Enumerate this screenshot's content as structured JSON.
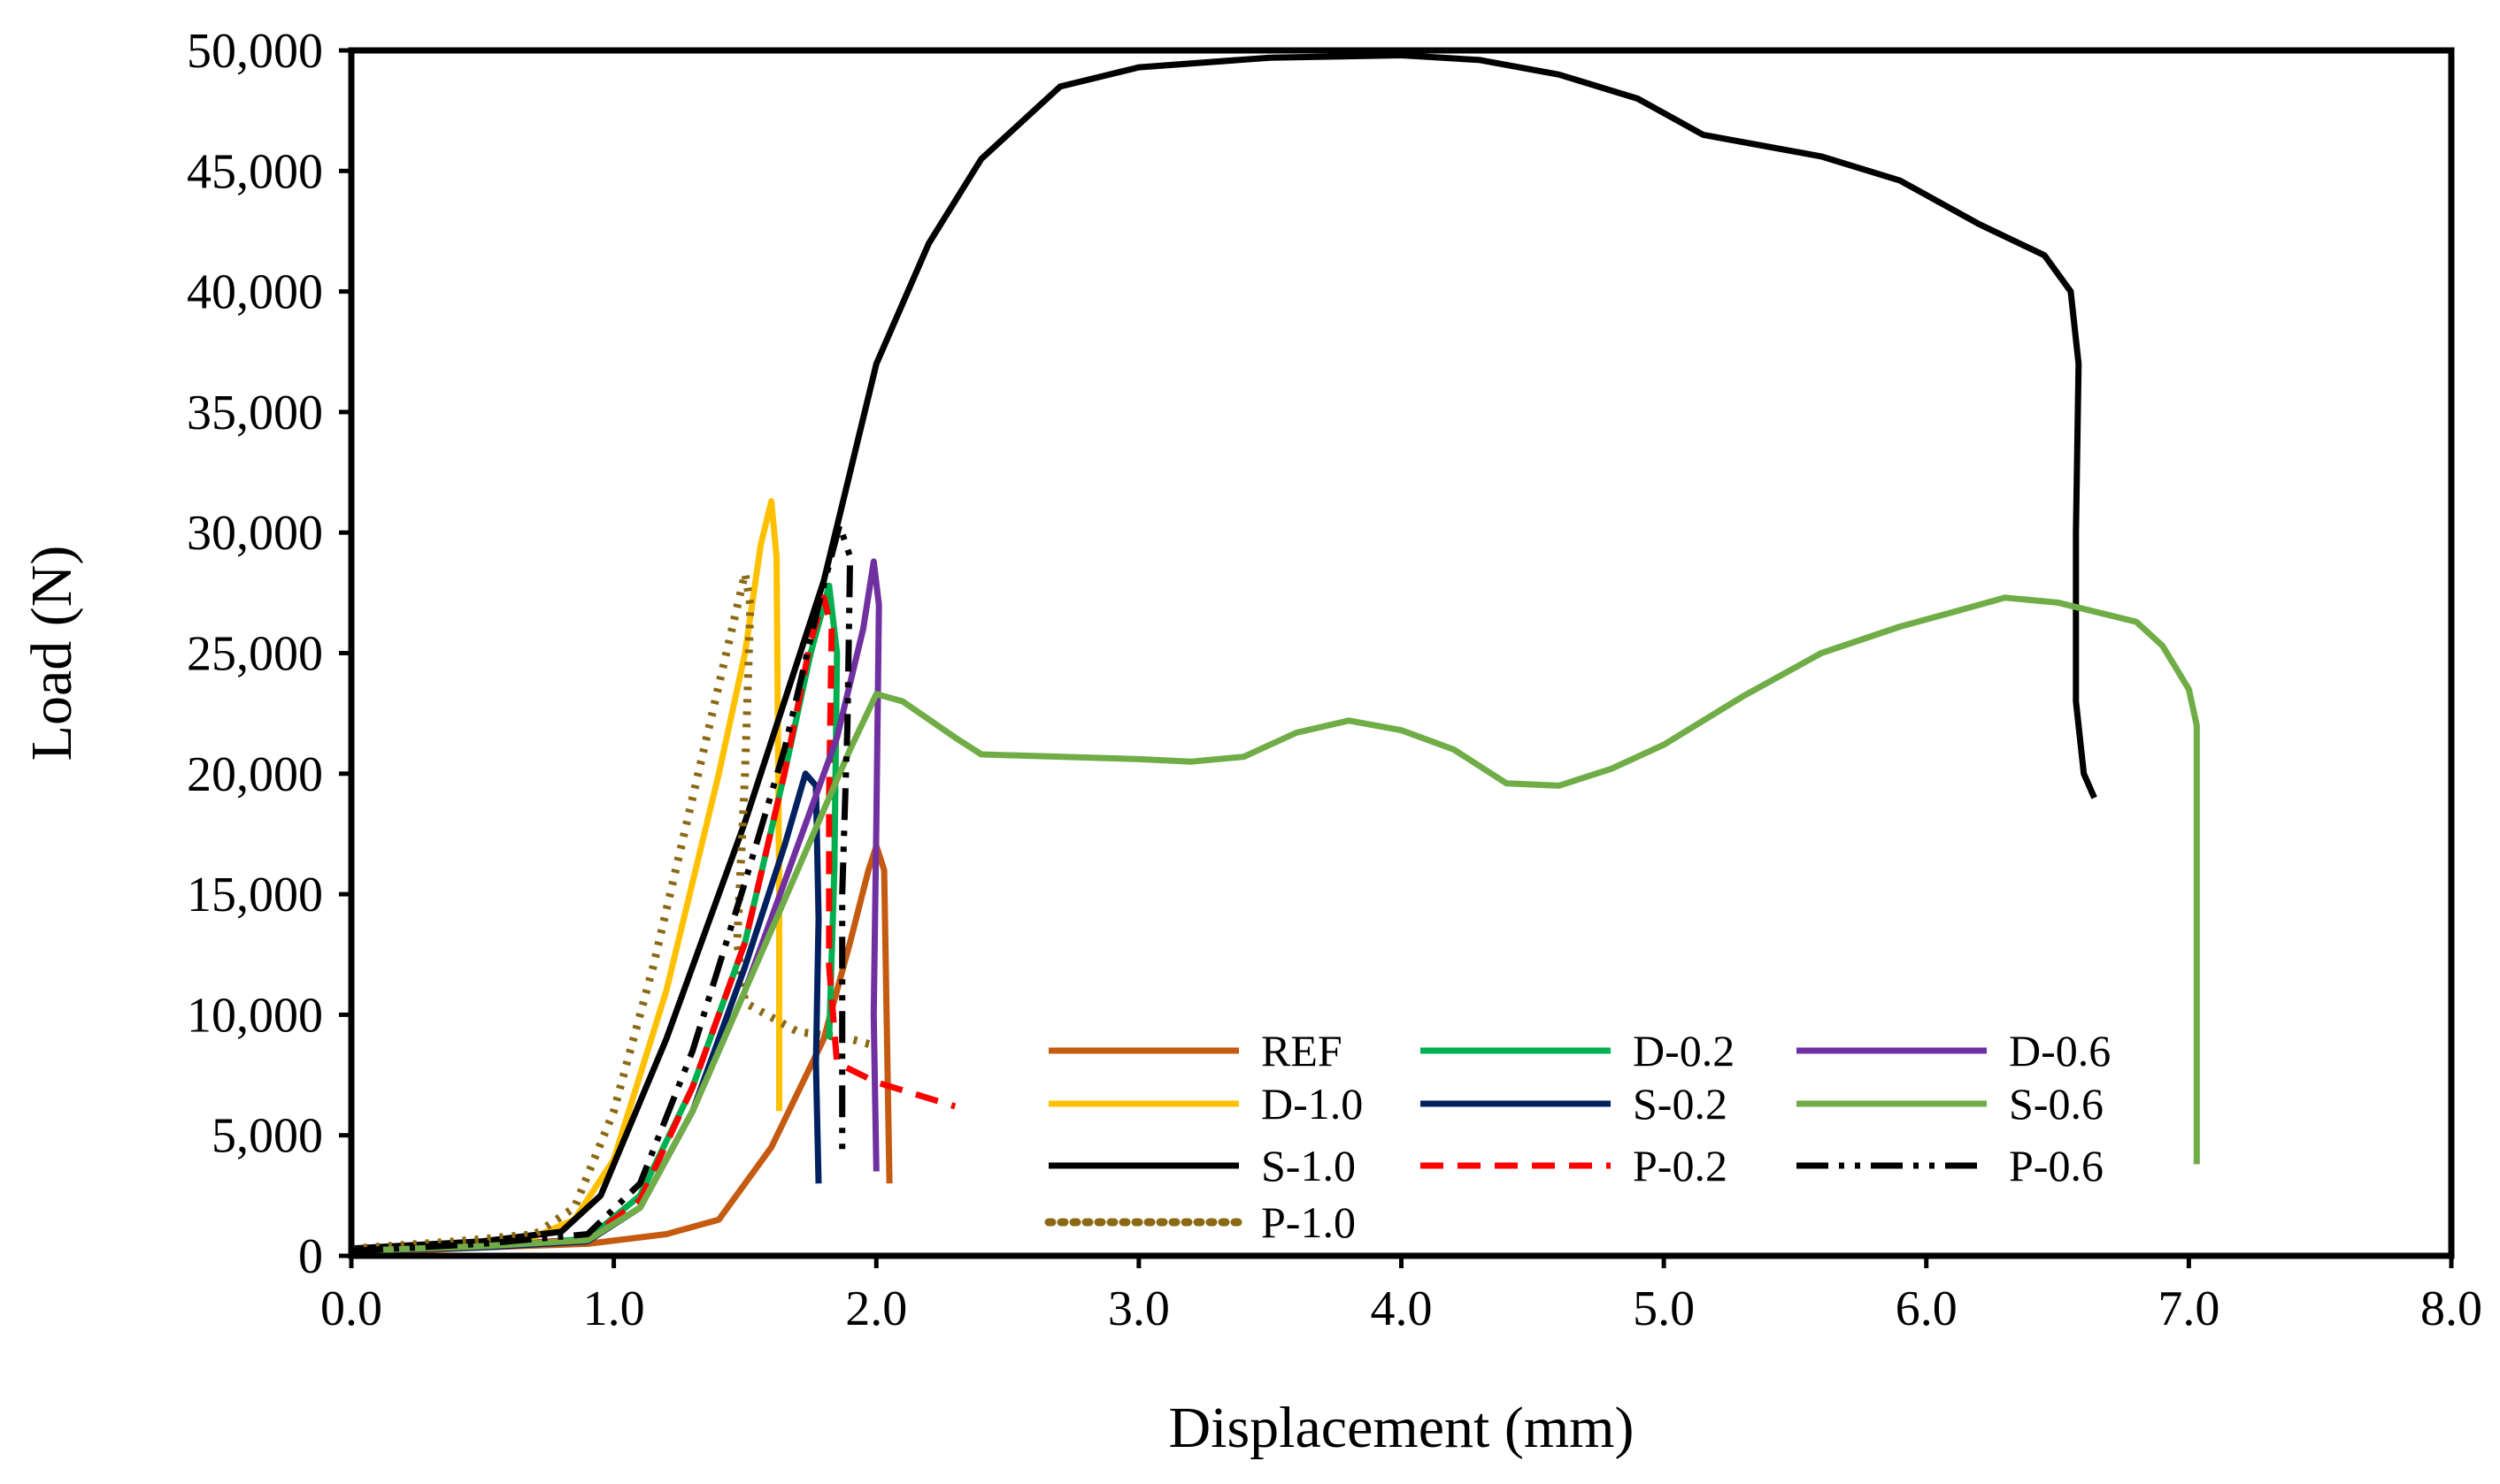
{
  "chart_data": {
    "type": "line",
    "title": "",
    "xlabel": "Displacement (mm)",
    "ylabel": "Load (N)",
    "xlim": [
      0,
      8
    ],
    "ylim": [
      0,
      50000
    ],
    "x_ticks": [
      0,
      1,
      2,
      3,
      4,
      5,
      6,
      7,
      8
    ],
    "x_tick_labels": [
      "0.0",
      "1.0",
      "2.0",
      "3.0",
      "4.0",
      "5.0",
      "6.0",
      "7.0",
      "8.0"
    ],
    "y_ticks": [
      0,
      5000,
      10000,
      15000,
      20000,
      25000,
      30000,
      35000,
      40000,
      45000,
      50000
    ],
    "y_tick_labels": [
      "0",
      "5,000",
      "10,000",
      "15,000",
      "20,000",
      "25,000",
      "30,000",
      "35,000",
      "40,000",
      "45,000",
      "50,000"
    ],
    "grid": false,
    "legend_position": "bottom-right inside",
    "series": [
      {
        "name": "REF",
        "color": "#C55A11",
        "dash": "solid",
        "points": [
          [
            0,
            100
          ],
          [
            0.5,
            350
          ],
          [
            0.9,
            500
          ],
          [
            1.2,
            900
          ],
          [
            1.4,
            1500
          ],
          [
            1.6,
            4500
          ],
          [
            1.8,
            9000
          ],
          [
            1.9,
            13000
          ],
          [
            1.97,
            16000
          ],
          [
            2.0,
            17000
          ],
          [
            2.03,
            16000
          ],
          [
            2.05,
            3000
          ]
        ]
      },
      {
        "name": "D-1.0",
        "color": "#FFC000",
        "dash": "solid",
        "points": [
          [
            0,
            200
          ],
          [
            0.4,
            500
          ],
          [
            0.7,
            800
          ],
          [
            0.85,
            1500
          ],
          [
            1.0,
            4000
          ],
          [
            1.2,
            11000
          ],
          [
            1.4,
            20000
          ],
          [
            1.5,
            25000
          ],
          [
            1.56,
            29500
          ],
          [
            1.6,
            31300
          ],
          [
            1.62,
            29000
          ],
          [
            1.63,
            15000
          ],
          [
            1.63,
            6000
          ]
        ]
      },
      {
        "name": "S-1.0",
        "color": "#000000",
        "dash": "solid",
        "points": [
          [
            0,
            300
          ],
          [
            0.5,
            600
          ],
          [
            0.8,
            1000
          ],
          [
            0.95,
            2500
          ],
          [
            1.2,
            9000
          ],
          [
            1.5,
            18000
          ],
          [
            1.8,
            28000
          ],
          [
            2.0,
            37000
          ],
          [
            2.2,
            42000
          ],
          [
            2.4,
            45500
          ],
          [
            2.7,
            48500
          ],
          [
            3.0,
            49300
          ],
          [
            3.5,
            49700
          ],
          [
            4.0,
            49800
          ],
          [
            4.3,
            49600
          ],
          [
            4.6,
            49000
          ],
          [
            4.9,
            48000
          ],
          [
            5.15,
            46500
          ],
          [
            5.6,
            45600
          ],
          [
            5.9,
            44600
          ],
          [
            6.2,
            42800
          ],
          [
            6.45,
            41500
          ],
          [
            6.55,
            40000
          ],
          [
            6.58,
            37000
          ],
          [
            6.57,
            30000
          ],
          [
            6.57,
            23000
          ],
          [
            6.6,
            20000
          ],
          [
            6.64,
            19000
          ]
        ]
      },
      {
        "name": "P-1.0",
        "color": "#8B6914",
        "dash": "dotted",
        "points": [
          [
            0,
            300
          ],
          [
            0.4,
            600
          ],
          [
            0.7,
            900
          ],
          [
            0.85,
            2000
          ],
          [
            1.0,
            6000
          ],
          [
            1.15,
            12000
          ],
          [
            1.3,
            19000
          ],
          [
            1.45,
            26000
          ],
          [
            1.5,
            28300
          ],
          [
            1.52,
            27000
          ],
          [
            1.5,
            20000
          ],
          [
            1.47,
            13000
          ],
          [
            1.5,
            10500
          ],
          [
            1.7,
            9300
          ],
          [
            1.9,
            9000
          ],
          [
            2.0,
            8700
          ]
        ]
      },
      {
        "name": "D-0.2",
        "color": "#00B050",
        "dash": "solid",
        "points": [
          [
            0,
            200
          ],
          [
            0.5,
            400
          ],
          [
            0.9,
            700
          ],
          [
            1.1,
            2500
          ],
          [
            1.3,
            7000
          ],
          [
            1.5,
            13000
          ],
          [
            1.65,
            20000
          ],
          [
            1.75,
            25000
          ],
          [
            1.82,
            27800
          ],
          [
            1.85,
            25000
          ],
          [
            1.84,
            16000
          ],
          [
            1.82,
            9000
          ]
        ]
      },
      {
        "name": "S-0.2",
        "color": "#002060",
        "dash": "solid",
        "points": [
          [
            0,
            200
          ],
          [
            0.5,
            350
          ],
          [
            0.9,
            600
          ],
          [
            1.1,
            2000
          ],
          [
            1.3,
            6000
          ],
          [
            1.5,
            12000
          ],
          [
            1.65,
            17000
          ],
          [
            1.73,
            20000
          ],
          [
            1.77,
            19500
          ],
          [
            1.78,
            14000
          ],
          [
            1.77,
            8000
          ],
          [
            1.78,
            3000
          ]
        ]
      },
      {
        "name": "P-0.2",
        "color": "#FF0000",
        "dash": "dashed",
        "points": [
          [
            0,
            200
          ],
          [
            0.5,
            400
          ],
          [
            0.9,
            700
          ],
          [
            1.1,
            2300
          ],
          [
            1.3,
            7000
          ],
          [
            1.5,
            13000
          ],
          [
            1.65,
            20000
          ],
          [
            1.75,
            25500
          ],
          [
            1.8,
            27300
          ],
          [
            1.83,
            26000
          ],
          [
            1.82,
            19000
          ],
          [
            1.82,
            12000
          ],
          [
            1.85,
            8000
          ],
          [
            2.0,
            7200
          ],
          [
            2.3,
            6200
          ]
        ]
      },
      {
        "name": "D-0.6",
        "color": "#7030A0",
        "dash": "solid",
        "points": [
          [
            0,
            200
          ],
          [
            0.5,
            400
          ],
          [
            0.9,
            650
          ],
          [
            1.1,
            2000
          ],
          [
            1.3,
            6000
          ],
          [
            1.5,
            11000
          ],
          [
            1.7,
            17000
          ],
          [
            1.85,
            21500
          ],
          [
            1.95,
            26000
          ],
          [
            1.99,
            28800
          ],
          [
            2.01,
            27000
          ],
          [
            2.0,
            18000
          ],
          [
            1.99,
            10000
          ],
          [
            2.0,
            3500
          ]
        ]
      },
      {
        "name": "S-0.6",
        "color": "#70AD47",
        "dash": "solid",
        "points": [
          [
            0,
            200
          ],
          [
            0.5,
            400
          ],
          [
            0.9,
            650
          ],
          [
            1.1,
            2000
          ],
          [
            1.3,
            6000
          ],
          [
            1.5,
            11000
          ],
          [
            1.7,
            16000
          ],
          [
            1.9,
            21000
          ],
          [
            2.0,
            23300
          ],
          [
            2.1,
            23000
          ],
          [
            2.3,
            21500
          ],
          [
            2.4,
            20800
          ],
          [
            3.0,
            20600
          ],
          [
            3.2,
            20500
          ],
          [
            3.4,
            20700
          ],
          [
            3.6,
            21700
          ],
          [
            3.8,
            22200
          ],
          [
            4.0,
            21800
          ],
          [
            4.2,
            21000
          ],
          [
            4.4,
            19600
          ],
          [
            4.6,
            19500
          ],
          [
            4.8,
            20200
          ],
          [
            5.0,
            21200
          ],
          [
            5.3,
            23200
          ],
          [
            5.6,
            25000
          ],
          [
            5.9,
            26100
          ],
          [
            6.1,
            26700
          ],
          [
            6.3,
            27300
          ],
          [
            6.5,
            27100
          ],
          [
            6.8,
            26300
          ],
          [
            6.9,
            25300
          ],
          [
            7.0,
            23500
          ],
          [
            7.03,
            22000
          ],
          [
            7.03,
            12000
          ],
          [
            7.03,
            3800
          ]
        ]
      },
      {
        "name": "P-0.6",
        "color": "#000000",
        "dash": "dashdotdot",
        "points": [
          [
            0,
            200
          ],
          [
            0.5,
            500
          ],
          [
            0.9,
            900
          ],
          [
            1.1,
            3000
          ],
          [
            1.3,
            8500
          ],
          [
            1.5,
            15500
          ],
          [
            1.65,
            21000
          ],
          [
            1.78,
            27000
          ],
          [
            1.86,
            30300
          ],
          [
            1.9,
            29000
          ],
          [
            1.89,
            22000
          ],
          [
            1.87,
            15000
          ],
          [
            1.87,
            4000
          ]
        ]
      }
    ],
    "legend": [
      [
        "REF",
        "D-0.2",
        "D-0.6"
      ],
      [
        "D-1.0",
        "S-0.2",
        "S-0.6"
      ],
      [
        "S-1.0",
        "P-0.2",
        "P-0.6"
      ],
      [
        "P-1.0"
      ]
    ]
  }
}
